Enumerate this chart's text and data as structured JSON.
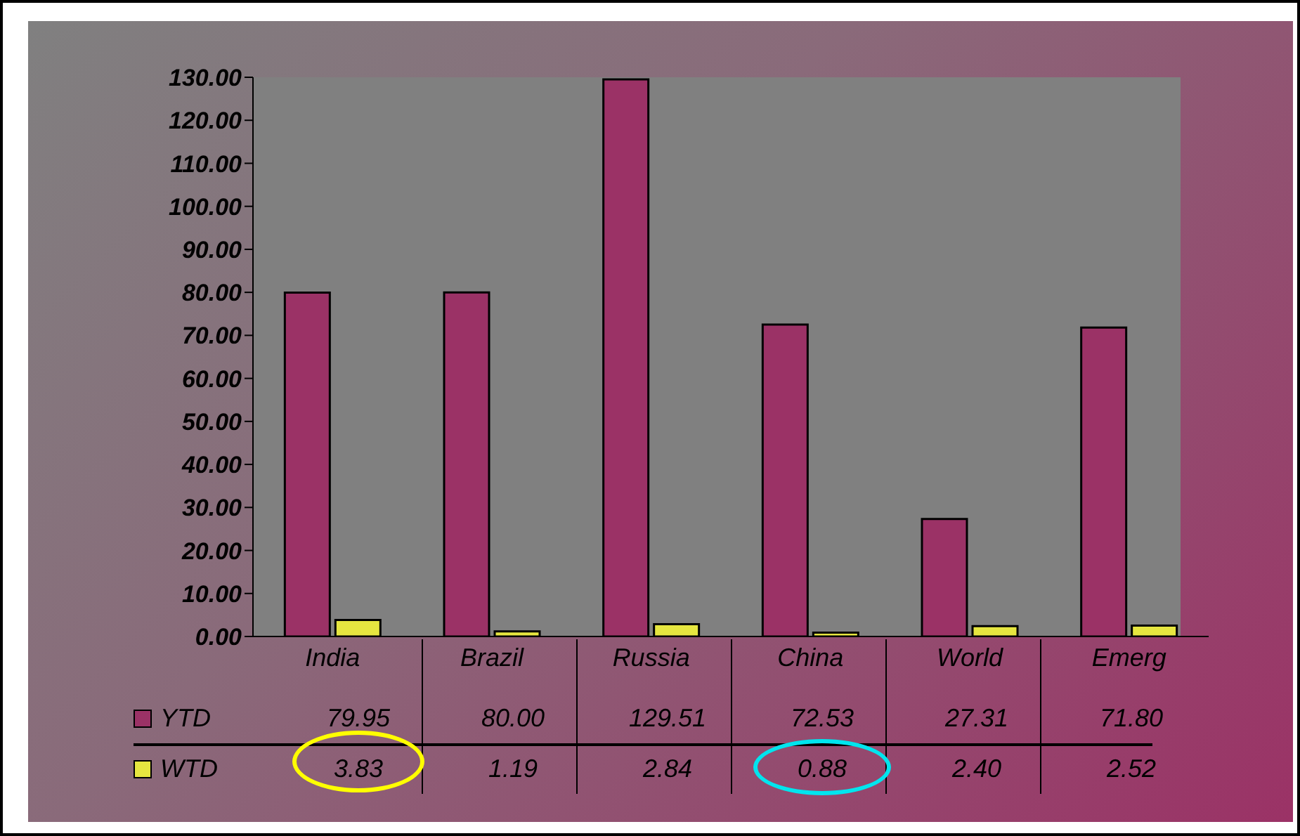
{
  "chart_data": {
    "type": "bar",
    "categories": [
      "India",
      "Brazil",
      "Russia",
      "China",
      "World",
      "Emerg"
    ],
    "series": [
      {
        "name": "YTD",
        "color": "#9b3266",
        "values": [
          79.95,
          80.0,
          129.51,
          72.53,
          27.31,
          71.8
        ],
        "value_labels": [
          "79.95",
          "80.00",
          "129.51",
          "72.53",
          "27.31",
          "71.80"
        ]
      },
      {
        "name": "WTD",
        "color": "#e6e640",
        "values": [
          3.83,
          1.19,
          2.84,
          0.88,
          2.4,
          2.52
        ],
        "value_labels": [
          "3.83",
          "1.19",
          "2.84",
          "0.88",
          "2.40",
          "2.52"
        ]
      }
    ],
    "ylim": [
      0,
      130
    ],
    "yticks": [
      {
        "value": 0,
        "label": "0.00"
      },
      {
        "value": 10,
        "label": "10.00"
      },
      {
        "value": 20,
        "label": "20.00"
      },
      {
        "value": 30,
        "label": "30.00"
      },
      {
        "value": 40,
        "label": "40.00"
      },
      {
        "value": 50,
        "label": "50.00"
      },
      {
        "value": 60,
        "label": "60.00"
      },
      {
        "value": 70,
        "label": "70.00"
      },
      {
        "value": 80,
        "label": "80.00"
      },
      {
        "value": 90,
        "label": "90.00"
      },
      {
        "value": 100,
        "label": "100.00"
      },
      {
        "value": 110,
        "label": "110.00"
      },
      {
        "value": 120,
        "label": "120.00"
      },
      {
        "value": 130,
        "label": "130.00"
      }
    ],
    "legend": "bottom left"
  }
}
